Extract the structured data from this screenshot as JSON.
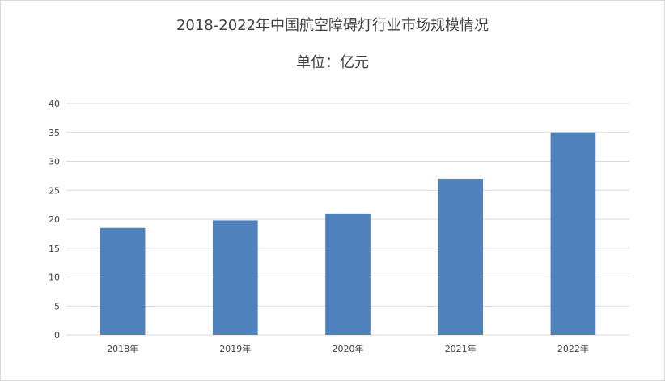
{
  "chart_data": {
    "type": "bar",
    "title": "2018-2022年中国航空障碍灯行业市场规模情况",
    "subtitle": "单位：亿元",
    "categories": [
      "2018年",
      "2019年",
      "2020年",
      "2021年",
      "2022年"
    ],
    "values": [
      18.5,
      19.8,
      21,
      27,
      35
    ],
    "ylim": [
      0,
      40
    ],
    "yticks": [
      0,
      5,
      10,
      15,
      20,
      25,
      30,
      35,
      40
    ],
    "grid": true,
    "legend": "none",
    "bar_color": "#4f81bd",
    "grid_color": "#d9d9d9",
    "text_color": "#404040"
  }
}
